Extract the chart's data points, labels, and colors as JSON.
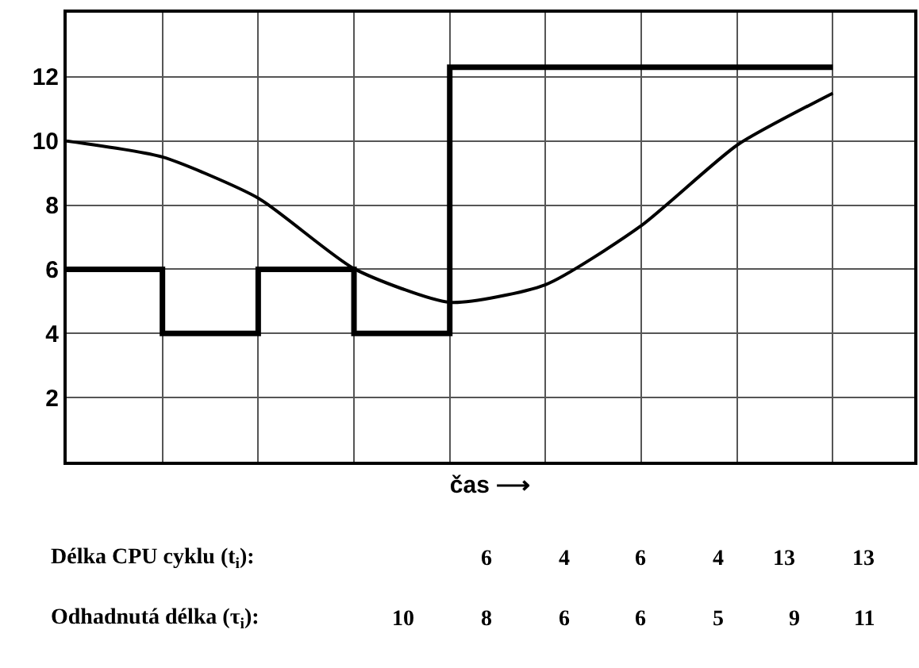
{
  "chart_data": {
    "type": "line",
    "xlabel": "čas ⟶",
    "categories": [
      null,
      null,
      null,
      null,
      null,
      null,
      null,
      null,
      null
    ],
    "ylim": [
      0,
      14
    ],
    "yticks": [
      2,
      4,
      6,
      8,
      10,
      12
    ],
    "tick_labels": "y",
    "grid": true,
    "marker": "none",
    "line_style": "solid",
    "series": [
      {
        "type": "step",
        "color": "#000000",
        "values": [
          6,
          4,
          6,
          4,
          12.3,
          12.3,
          12.3,
          12.3,
          12.3
        ]
      },
      {
        "color": "#000000",
        "values": [
          10,
          9.5,
          8.22,
          6.02,
          4.97,
          5.52,
          7.36,
          9.87,
          11.49
        ]
      }
    ],
    "annotations": [
      "Délka CPU cyklu (t$_{i}$):",
      "6",
      "4",
      "6",
      "4",
      "13",
      "13",
      "Odhadnutá délka (τ$_{i}$):",
      "10",
      "8",
      "6",
      "6",
      "5",
      "9",
      "11"
    ]
  }
}
